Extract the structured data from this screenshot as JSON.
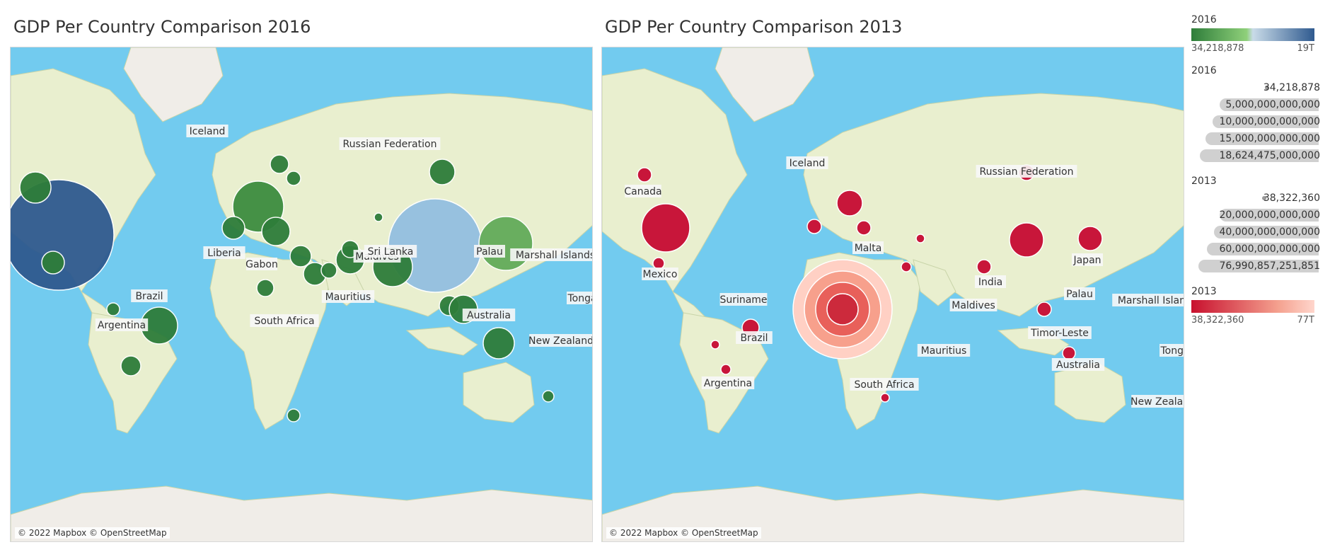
{
  "left_map": {
    "title": "GDP Per Country Comparison 2016",
    "attribution": "© 2022 Mapbox © OpenStreetMap",
    "labels": [
      "Iceland",
      "Russian Federation",
      "Liberia",
      "Gabon",
      "Maldives",
      "Sri Lanka",
      "Palau",
      "Marshall Islands",
      "Brazil",
      "Argentina",
      "Mauritius",
      "South Africa",
      "Australia",
      "Tonga",
      "New Zealand"
    ]
  },
  "right_map": {
    "title": "GDP Per Country Comparison 2013",
    "attribution": "© 2022 Mapbox © OpenStreetMap",
    "labels": [
      "Iceland",
      "Canada",
      "Russian Federation",
      "Malta",
      "Mexico",
      "Japan",
      "India",
      "Suriname",
      "Maldives",
      "Palau",
      "Marshall Islands",
      "Brazil",
      "Timor-Leste",
      "Mauritius",
      "Australia",
      "Tonga",
      "Argentina",
      "South Africa",
      "New Zealand"
    ]
  },
  "legend": {
    "color_2016": {
      "title": "2016",
      "min_label": "34,218,878",
      "max_label": "19T",
      "colors": [
        "#2e7d3a",
        "#8fd07a",
        "#c9dbe8",
        "#2f5a8f"
      ]
    },
    "size_2016": {
      "title": "2016",
      "items": [
        "34,218,878",
        "5,000,000,000,000",
        "10,000,000,000,000",
        "15,000,000,000,000",
        "18,624,475,000,000"
      ]
    },
    "size_2013": {
      "title": "2013",
      "items": [
        "38,322,360",
        "20,000,000,000,000",
        "40,000,000,000,000",
        "60,000,000,000,000",
        "76,990,857,251,851"
      ]
    },
    "color_2013": {
      "title": "2013",
      "min_label": "38,322,360",
      "max_label": "77T",
      "colors": [
        "#c8102e",
        "#f4a08e",
        "#ffd6cc"
      ]
    }
  },
  "colors": {
    "ocean": "#72cbef",
    "land": "#e9efcf",
    "ice": "#f0ede8",
    "green": "#2e7d3a",
    "red": "#c8163a",
    "label_bg": "#f7f7f7"
  }
}
